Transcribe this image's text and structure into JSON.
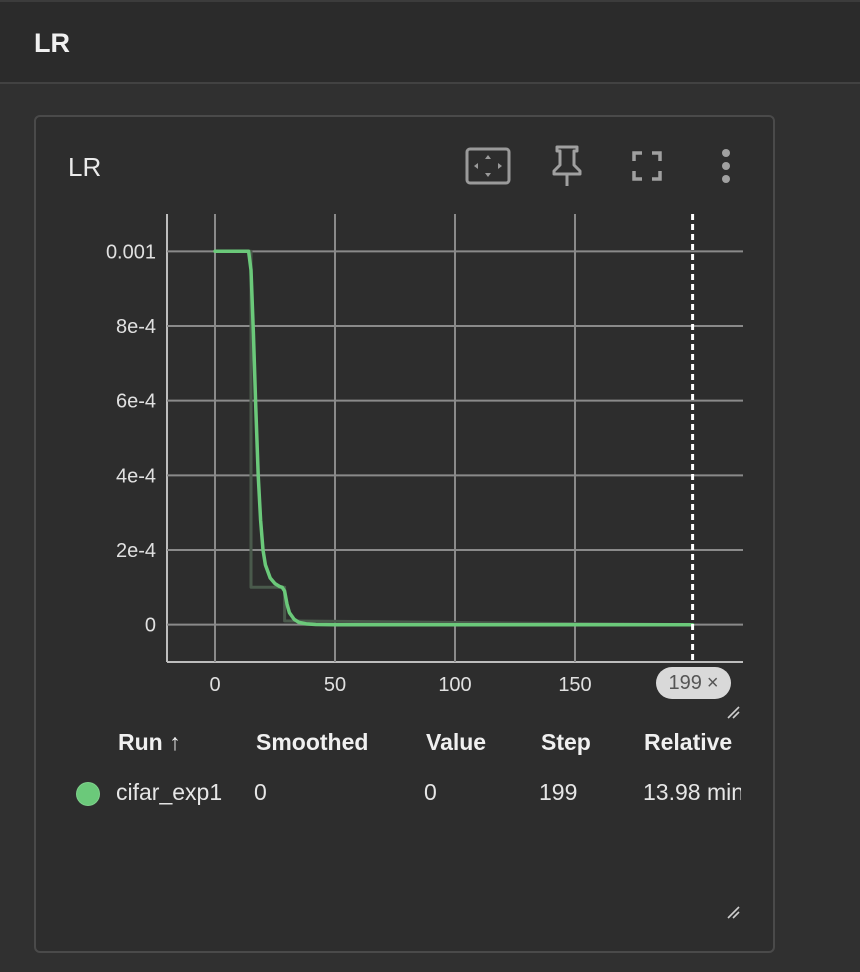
{
  "group": {
    "title": "LR"
  },
  "card": {
    "title": "LR",
    "toolbar": {
      "fit_icon": "fit-domain-icon",
      "pin_icon": "pin-icon",
      "fullscreen_icon": "fullscreen-icon",
      "menu_icon": "more-vert-icon"
    }
  },
  "chart_data": {
    "type": "line",
    "title": "",
    "xlabel": "",
    "ylabel": "",
    "xlim": [
      -20,
      220
    ],
    "ylim": [
      -0.0001,
      0.0011
    ],
    "x_ticks": [
      0,
      50,
      100,
      150
    ],
    "x_tick_labels": [
      "0",
      "50",
      "100",
      "150"
    ],
    "y_ticks": [
      0,
      0.0002,
      0.0004,
      0.0006,
      0.0008,
      0.001
    ],
    "y_tick_labels": [
      "0",
      "2e-4",
      "4e-4",
      "6e-4",
      "8e-4",
      "0.001"
    ],
    "grid": true,
    "series": [
      {
        "name": "cifar_exp1",
        "kind": "raw",
        "color": "#4a5a4c",
        "x": [
          0,
          15,
          15,
          29,
          29,
          199
        ],
        "y": [
          0.001,
          0.001,
          0.0001,
          0.0001,
          1e-05,
          0.0
        ]
      },
      {
        "name": "cifar_exp1",
        "kind": "smoothed",
        "color": "#6bc97a",
        "x": [
          0,
          14,
          15,
          16,
          17,
          18,
          19,
          20,
          21,
          23,
          25,
          27,
          28,
          29,
          30,
          31,
          33,
          35,
          38,
          42,
          50,
          100,
          199
        ],
        "y": [
          0.001,
          0.001,
          0.00095,
          0.00078,
          0.00058,
          0.0004,
          0.00028,
          0.0002,
          0.00016,
          0.000125,
          0.00011,
          0.000102,
          0.0001,
          9e-05,
          5.5e-05,
          3.2e-05,
          1.4e-05,
          6e-06,
          2e-06,
          5e-07,
          0.0,
          0.0,
          0.0
        ]
      }
    ],
    "cursor_step": 199
  },
  "step_badge": {
    "label": "199",
    "close": "×"
  },
  "table": {
    "headers": {
      "run": "Run ↑",
      "smoothed": "Smoothed",
      "value": "Value",
      "step": "Step",
      "relative": "Relative"
    },
    "rows": [
      {
        "color": "#6bc97a",
        "run": "cifar_exp1",
        "smoothed": "0",
        "value": "0",
        "step": "199",
        "relative": "13.98 min"
      }
    ]
  }
}
